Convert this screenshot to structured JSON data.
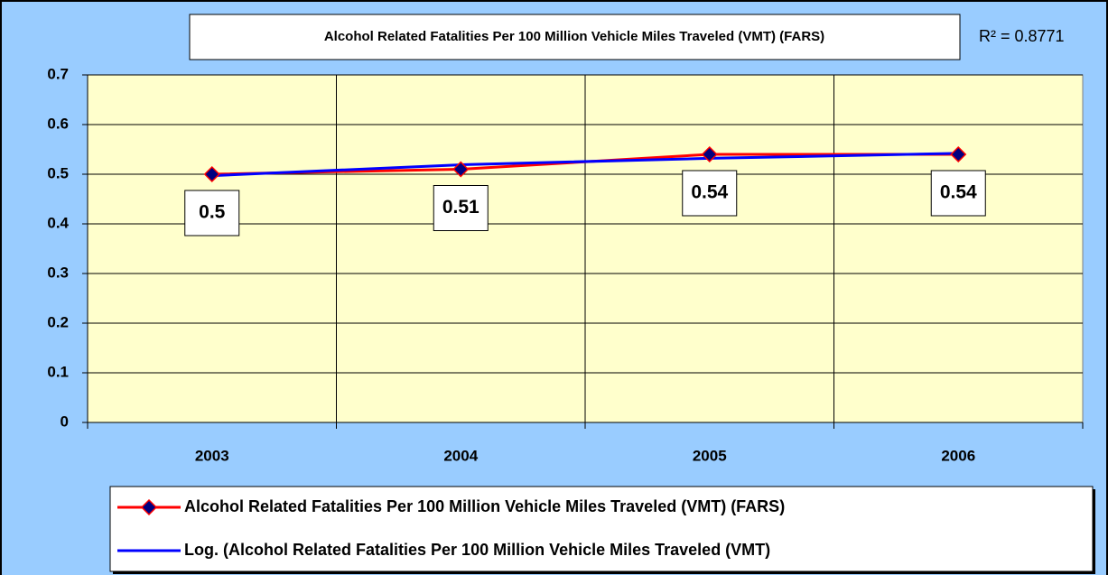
{
  "chart_data": {
    "type": "line",
    "title": "Alcohol Related Fatalities Per 100 Million Vehicle Miles Traveled (VMT) (FARS)",
    "annotation": "R² = 0.8771",
    "categories": [
      "2003",
      "2004",
      "2005",
      "2006"
    ],
    "series": [
      {
        "name": "Alcohol Related Fatalities Per 100 Million Vehicle Miles Traveled (VMT) (FARS)",
        "color": "#ff0000",
        "marker_color": "#000080",
        "values": [
          0.5,
          0.51,
          0.54,
          0.54
        ],
        "data_labels": true
      },
      {
        "name": "Log. (Alcohol Related Fatalities Per 100 Million Vehicle Miles Traveled (VMT)",
        "color": "#0000ff",
        "values": [
          0.497,
          0.519,
          0.532,
          0.542
        ]
      }
    ],
    "ylim": [
      0,
      0.7
    ],
    "yticks": [
      0,
      0.1,
      0.2,
      0.3,
      0.4,
      0.5,
      0.6,
      0.7
    ],
    "grid": true,
    "plot_background": "#ffffcc",
    "background": "#99ccff",
    "legend": "bottom"
  }
}
